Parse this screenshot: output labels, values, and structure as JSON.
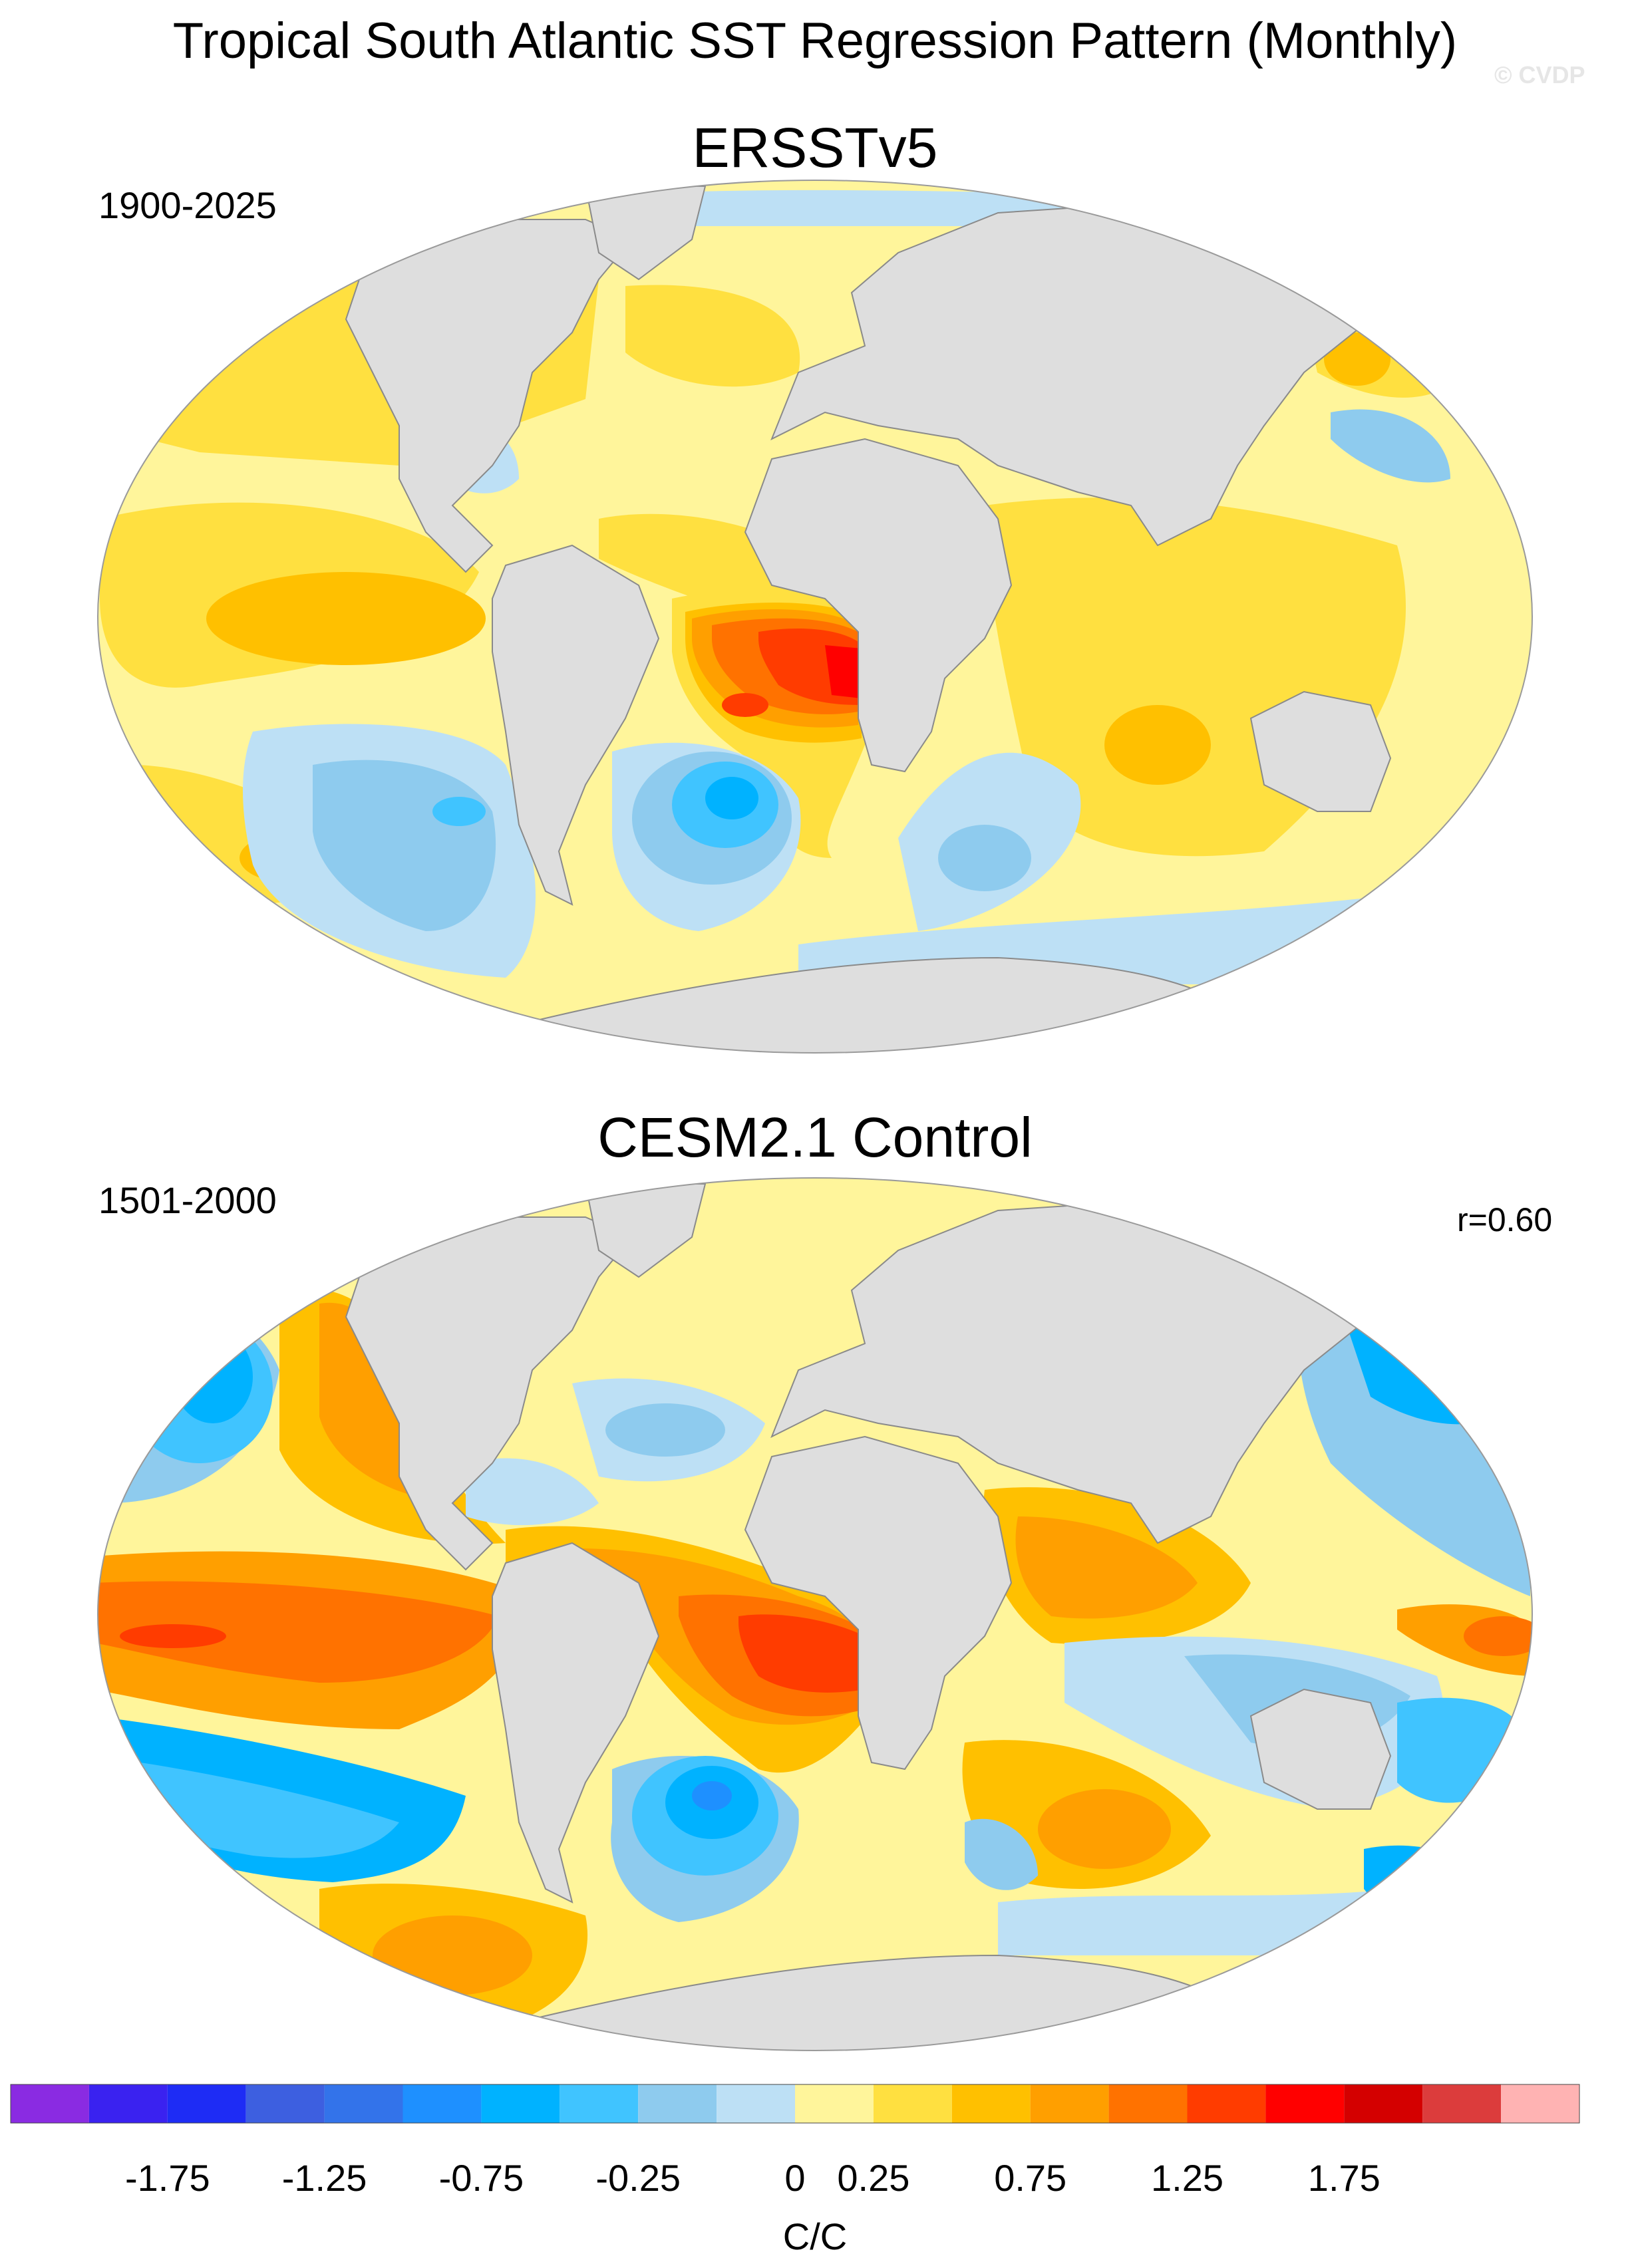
{
  "figure": {
    "title": "Tropical South Atlantic SST Regression Pattern (Monthly)",
    "watermark": "© CVDP"
  },
  "colors": {
    "land": "#dedede",
    "coast": "#8a8a8a",
    "ocean_background": "#fff59b"
  },
  "panels": [
    {
      "name": "ERSSTv5",
      "period": "1900-2025",
      "correlation": ""
    },
    {
      "name": "CESM2.1 Control",
      "period": "1501-2000",
      "correlation": "r=0.60"
    }
  ],
  "colorbar": {
    "units": "C/C",
    "labels": [
      "-1.75",
      "-1.25",
      "-0.75",
      "-0.25",
      "0",
      "0.25",
      "0.75",
      "1.25",
      "1.75"
    ],
    "colors": [
      "#8a2be2",
      "#3a22f0",
      "#1e2cf5",
      "#3d5fe0",
      "#3373ea",
      "#1e90ff",
      "#00b2ff",
      "#40c4ff",
      "#8ecbee",
      "#bde0f5",
      "#fff59b",
      "#ffe040",
      "#ffc000",
      "#ff9f00",
      "#ff7200",
      "#ff3c00",
      "#ff0000",
      "#d40000",
      "#dc3c3c",
      "#ffb3b3"
    ]
  }
}
